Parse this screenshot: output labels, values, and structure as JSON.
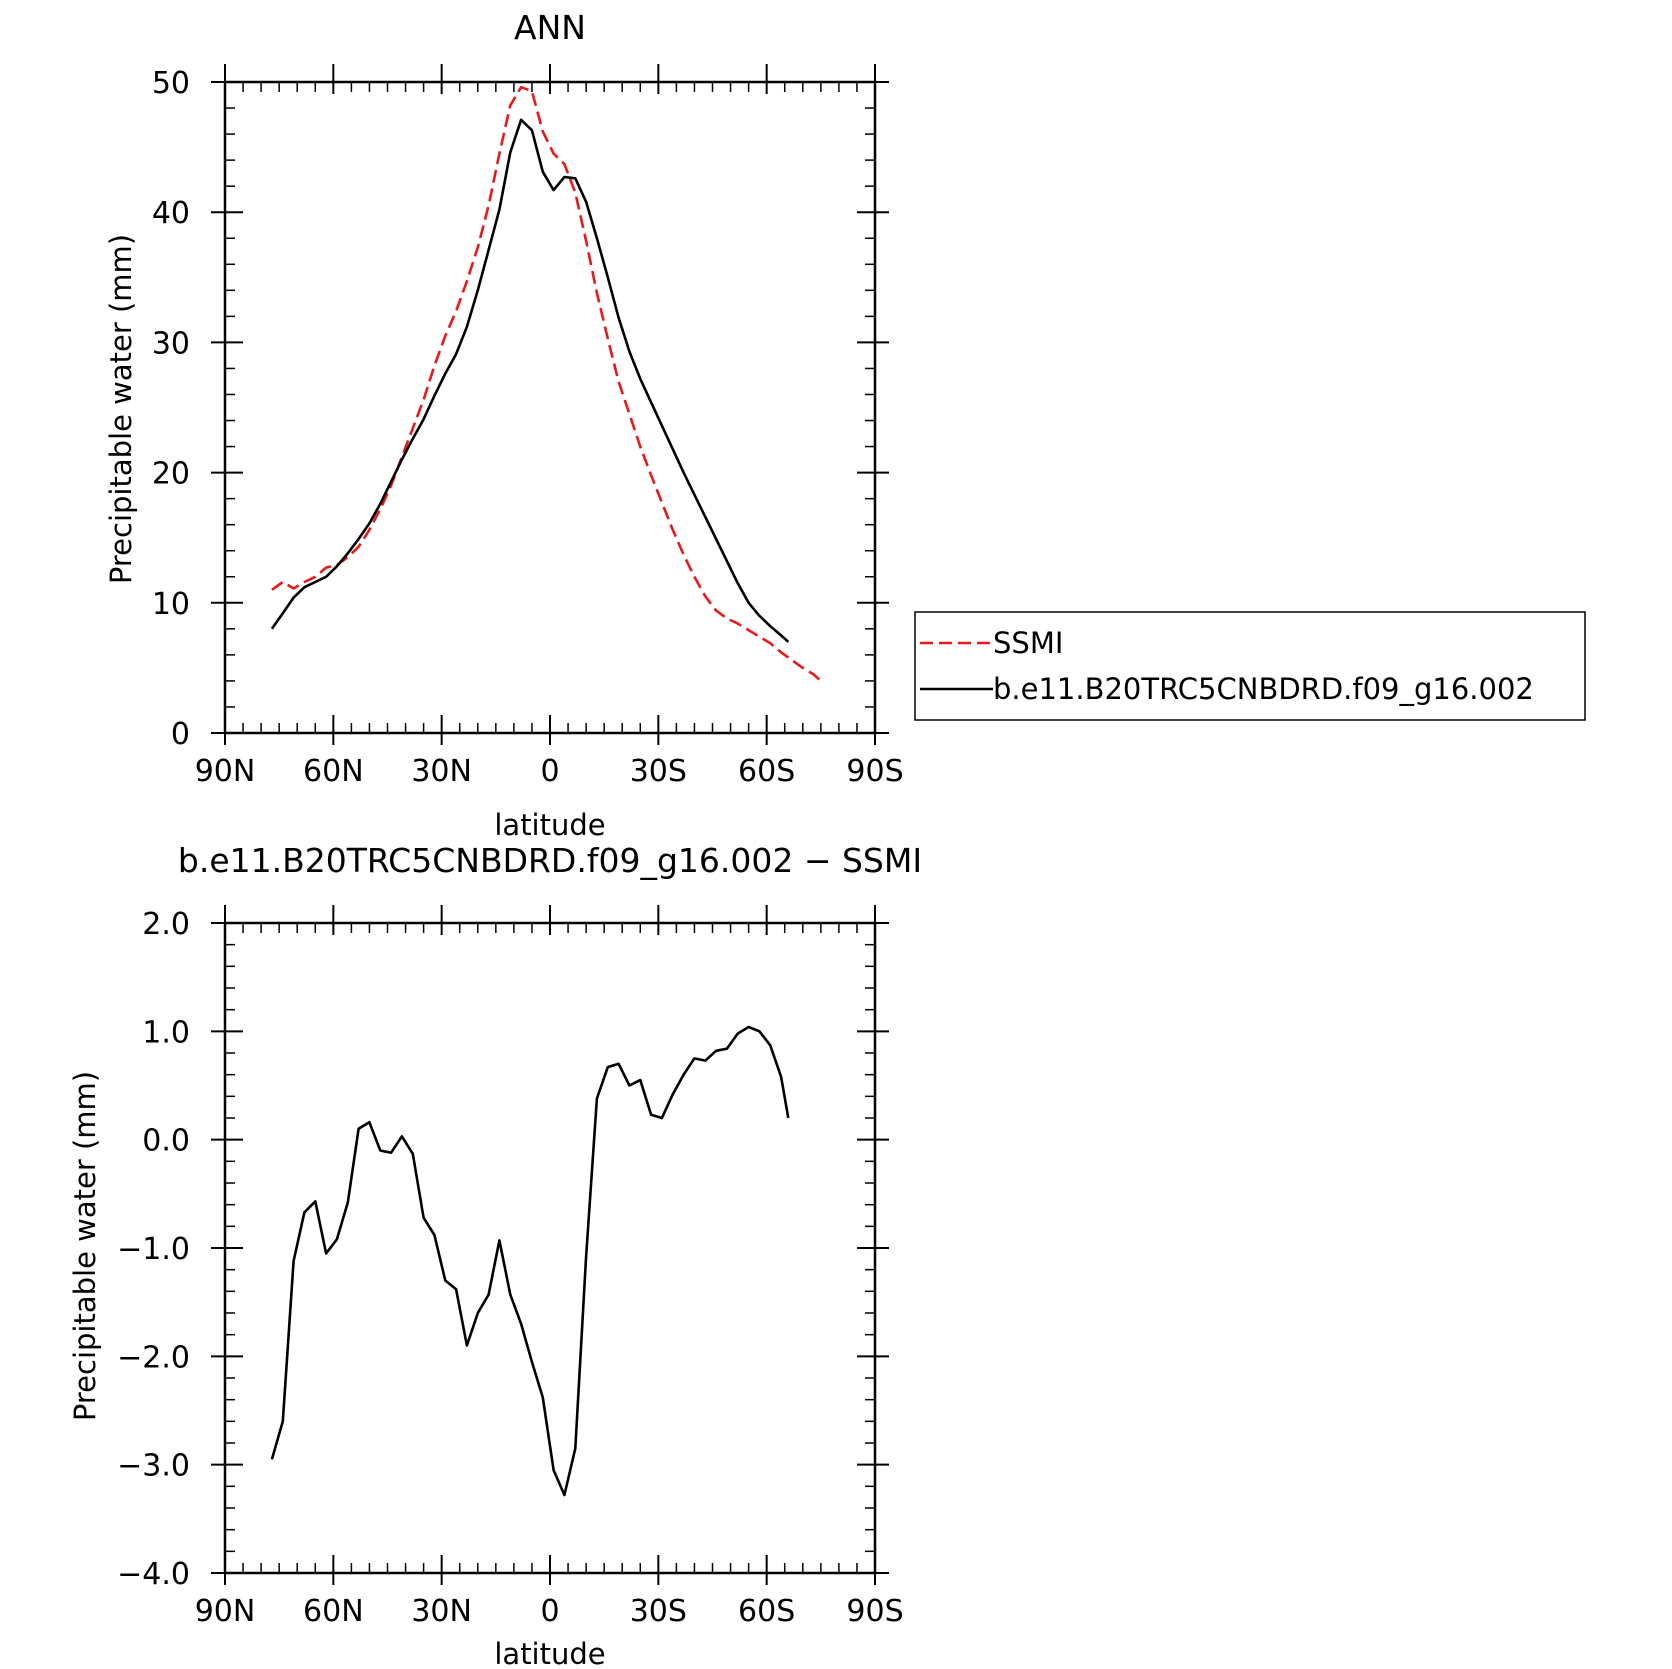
{
  "chart_data": [
    {
      "type": "line",
      "title": "ANN",
      "xlabel": "latitude",
      "ylabel": "Precipitable water (mm)",
      "xlim": [
        90,
        -90
      ],
      "ylim": [
        0,
        50
      ],
      "xticks": [
        90,
        60,
        30,
        0,
        -30,
        -60,
        -90
      ],
      "xtick_labels": [
        "90N",
        "60N",
        "30N",
        "0",
        "30S",
        "60S",
        "90S"
      ],
      "yticks": [
        0,
        10,
        20,
        30,
        40,
        50
      ],
      "ytick_labels": [
        "0",
        "10",
        "20",
        "30",
        "40",
        "50"
      ],
      "grid": false,
      "legend_position": "right",
      "series": [
        {
          "name": "SSMI",
          "color": "#e8191b",
          "dash": "dashed",
          "x": [
            77,
            74,
            71,
            68,
            65,
            62,
            59,
            56,
            53,
            50,
            47,
            44,
            41,
            38,
            35,
            32,
            29,
            26,
            23,
            20,
            17,
            14,
            11,
            8,
            5,
            2,
            -1,
            -4,
            -7,
            -10,
            -13,
            -16,
            -19,
            -22,
            -25,
            -28,
            -31,
            -34,
            -37,
            -40,
            -43,
            -46,
            -49,
            -52,
            -55,
            -58,
            -61,
            -64,
            -67,
            -70,
            -73,
            -75
          ],
          "y": [
            11.0,
            11.6,
            11.1,
            11.6,
            12.0,
            12.7,
            12.9,
            13.5,
            14.3,
            15.6,
            17.2,
            19.0,
            21.2,
            23.4,
            25.6,
            28.2,
            30.5,
            32.4,
            34.7,
            37.3,
            40.5,
            44.5,
            48.2,
            49.6,
            49.3,
            46.2,
            44.5,
            43.7,
            41.5,
            37.8,
            33.8,
            30.3,
            27.0,
            24.5,
            22.0,
            19.8,
            17.7,
            15.6,
            13.7,
            12.0,
            10.5,
            9.4,
            8.8,
            8.4,
            7.9,
            7.4,
            6.9,
            6.2,
            5.6,
            5.0,
            4.5,
            4.0
          ]
        },
        {
          "name": "b.e11.B20TRC5CNBDRD.f09_g16.002",
          "color": "#000000",
          "dash": "solid",
          "x": [
            77,
            74,
            71,
            68,
            65,
            62,
            59,
            56,
            53,
            50,
            47,
            44,
            41,
            38,
            35,
            32,
            29,
            26,
            23,
            20,
            17,
            14,
            11,
            8,
            5,
            2,
            -1,
            -4,
            -7,
            -10,
            -13,
            -16,
            -19,
            -22,
            -25,
            -28,
            -31,
            -34,
            -37,
            -40,
            -43,
            -46,
            -49,
            -52,
            -55,
            -58,
            -61,
            -64,
            -66
          ],
          "y": [
            8.0,
            9.2,
            10.4,
            11.2,
            11.6,
            12.0,
            12.8,
            13.8,
            14.9,
            16.1,
            17.6,
            19.3,
            21.0,
            22.6,
            24.1,
            25.9,
            27.6,
            29.1,
            31.2,
            34.0,
            37.1,
            40.2,
            44.6,
            47.1,
            46.3,
            43.1,
            41.7,
            42.7,
            42.6,
            40.8,
            38.0,
            35.0,
            31.9,
            29.3,
            27.2,
            25.4,
            23.6,
            21.8,
            20.0,
            18.3,
            16.6,
            14.9,
            13.2,
            11.5,
            10.0,
            9.0,
            8.2,
            7.5,
            7.0
          ]
        }
      ]
    },
    {
      "type": "line",
      "title": "b.e11.B20TRC5CNBDRD.f09_g16.002 − SSMI",
      "xlabel": "latitude",
      "ylabel": "Precipitable water (mm)",
      "xlim": [
        90,
        -90
      ],
      "ylim": [
        -4.0,
        2.0
      ],
      "xticks": [
        90,
        60,
        30,
        0,
        -30,
        -60,
        -90
      ],
      "xtick_labels": [
        "90N",
        "60N",
        "30N",
        "0",
        "30S",
        "60S",
        "90S"
      ],
      "yticks": [
        -4.0,
        -3.0,
        -2.0,
        -1.0,
        0.0,
        1.0,
        2.0
      ],
      "ytick_labels": [
        "−4.0",
        "−3.0",
        "−2.0",
        "−1.0",
        "0.0",
        "1.0",
        "2.0"
      ],
      "grid": false,
      "series": [
        {
          "color": "#000000",
          "dash": "solid",
          "x": [
            77,
            74,
            71,
            68,
            65,
            62,
            59,
            56,
            53,
            50,
            47,
            44,
            41,
            38,
            35,
            32,
            29,
            26,
            23,
            20,
            17,
            14,
            11,
            8,
            5,
            2,
            -1,
            -4,
            -7,
            -10,
            -13,
            -16,
            -19,
            -22,
            -25,
            -28,
            -31,
            -34,
            -37,
            -40,
            -43,
            -46,
            -49,
            -52,
            -55,
            -58,
            -61,
            -64,
            -66
          ],
          "y": [
            -2.95,
            -2.6,
            -1.12,
            -0.67,
            -0.57,
            -1.05,
            -0.92,
            -0.58,
            0.1,
            0.16,
            -0.1,
            -0.12,
            0.03,
            -0.13,
            -0.72,
            -0.88,
            -1.3,
            -1.38,
            -1.9,
            -1.6,
            -1.43,
            -0.93,
            -1.43,
            -1.7,
            -2.05,
            -2.38,
            -3.05,
            -3.28,
            -2.85,
            -1.08,
            0.38,
            0.67,
            0.7,
            0.5,
            0.55,
            0.23,
            0.2,
            0.42,
            0.6,
            0.75,
            0.73,
            0.82,
            0.84,
            0.98,
            1.04,
            1.0,
            0.87,
            0.58,
            0.2
          ]
        }
      ]
    }
  ],
  "legend": {
    "items": [
      {
        "label": "SSMI",
        "color": "#e8191b",
        "dash": "dashed"
      },
      {
        "label": "b.e11.B20TRC5CNBDRD.f09_g16.002",
        "color": "#000000",
        "dash": "solid"
      }
    ]
  }
}
